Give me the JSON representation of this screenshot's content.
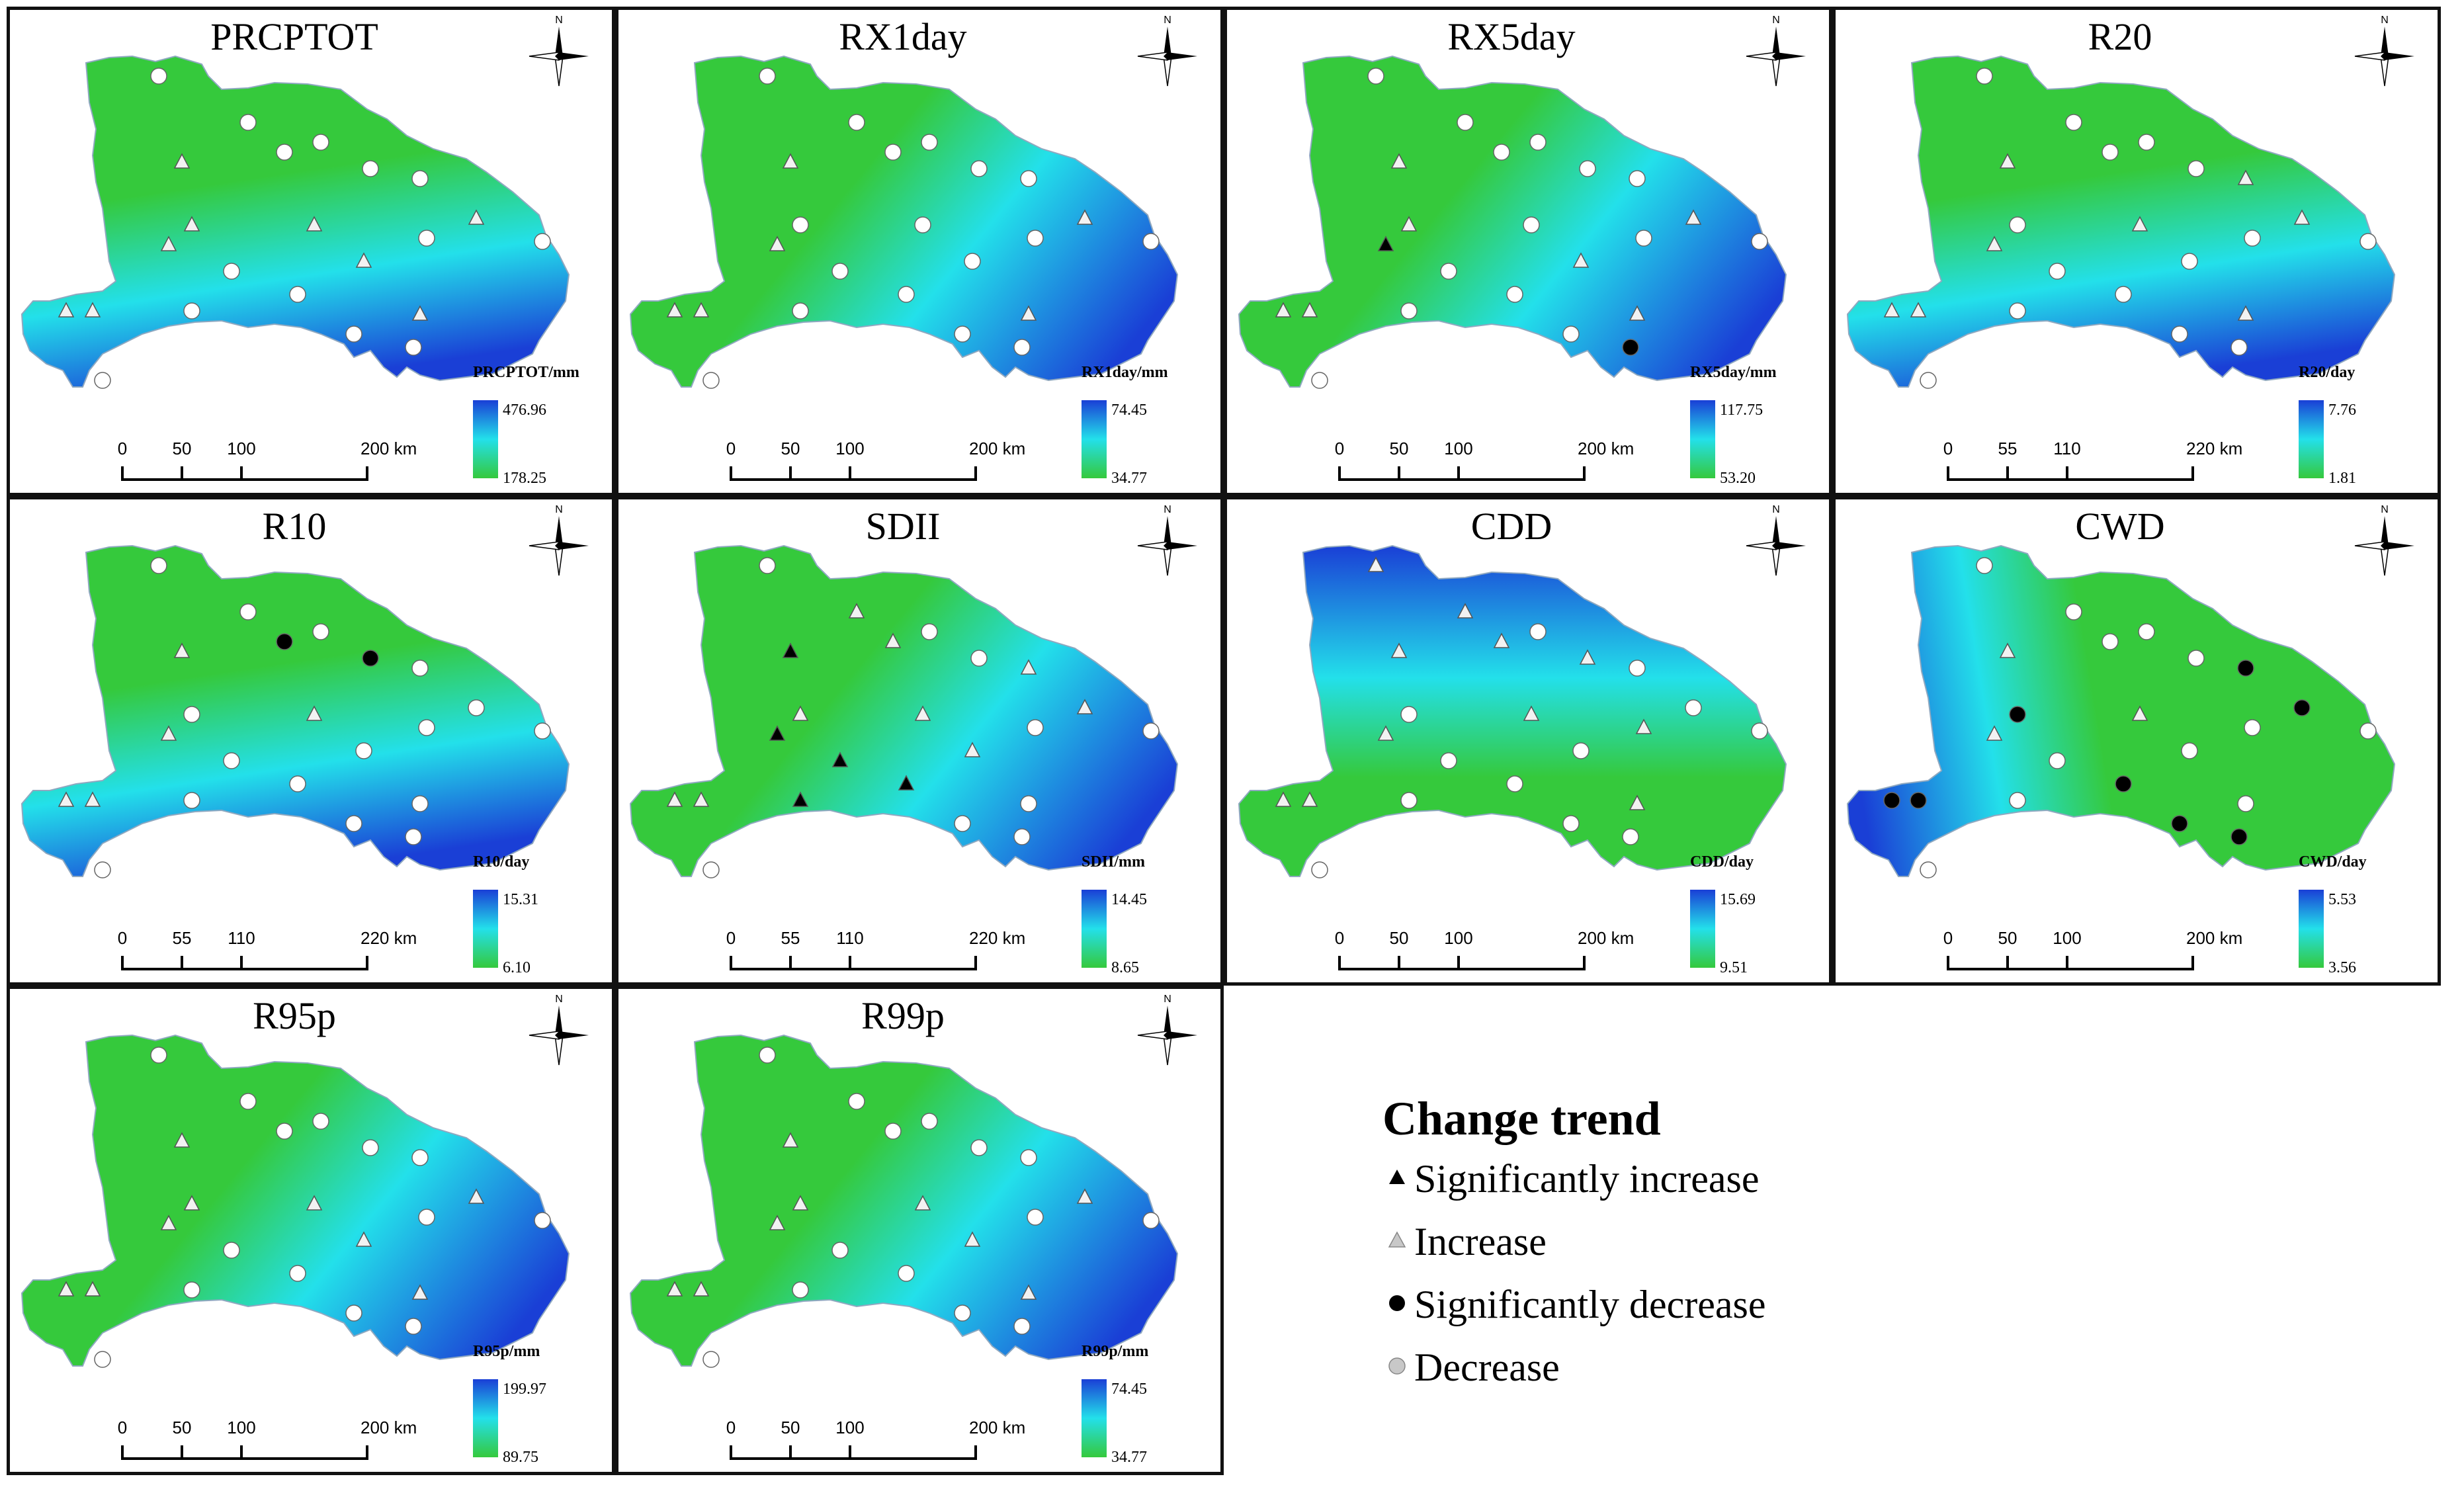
{
  "panels": [
    {
      "title": "PRCPTOT",
      "unit": "PRCPTOT/mm",
      "max": "476.96",
      "min": "178.25",
      "scale": [
        "0",
        "50",
        "100",
        "200 km"
      ],
      "ramp": "south"
    },
    {
      "title": "RX1day",
      "unit": "RX1day/mm",
      "max": "74.45",
      "min": "34.77",
      "scale": [
        "0",
        "50",
        "100",
        "200 km"
      ],
      "ramp": "east"
    },
    {
      "title": "RX5day",
      "unit": "RX5day/mm",
      "max": "117.75",
      "min": "53.20",
      "scale": [
        "0",
        "50",
        "100",
        "200 km"
      ],
      "ramp": "east"
    },
    {
      "title": "R20",
      "unit": "R20/day",
      "max": "7.76",
      "min": "1.81",
      "scale": [
        "0",
        "55",
        "110",
        "220 km"
      ],
      "ramp": "south"
    },
    {
      "title": "R10",
      "unit": "R10/day",
      "max": "15.31",
      "min": "6.10",
      "scale": [
        "0",
        "55",
        "110",
        "220 km"
      ],
      "ramp": "south"
    },
    {
      "title": "SDII",
      "unit": "SDII/mm",
      "max": "14.45",
      "min": "8.65",
      "scale": [
        "0",
        "55",
        "110",
        "220 km"
      ],
      "ramp": "east"
    },
    {
      "title": "CDD",
      "unit": "CDD/day",
      "max": "15.69",
      "min": "9.51",
      "scale": [
        "0",
        "50",
        "100",
        "200 km"
      ],
      "ramp": "north"
    },
    {
      "title": "CWD",
      "unit": "CWD/day",
      "max": "5.53",
      "min": "3.56",
      "scale": [
        "0",
        "50",
        "100",
        "200 km"
      ],
      "ramp": "west"
    },
    {
      "title": "R95p",
      "unit": "R95p/mm",
      "max": "199.97",
      "min": "89.75",
      "scale": [
        "0",
        "50",
        "100",
        "200 km"
      ],
      "ramp": "east"
    },
    {
      "title": "R99p",
      "unit": "R99p/mm",
      "max": "74.45",
      "min": "34.77",
      "scale": [
        "0",
        "50",
        "100",
        "200 km"
      ],
      "ramp": "east"
    }
  ],
  "legend": {
    "title": "Change trend",
    "items": [
      {
        "label": "Significantly increase",
        "symbol": "triangle",
        "color": "#000000"
      },
      {
        "label": "Increase",
        "symbol": "triangle",
        "color": "#c8c8c8"
      },
      {
        "label": "Significantly decrease",
        "symbol": "circle",
        "color": "#000000"
      },
      {
        "label": "Decrease",
        "symbol": "circle",
        "color": "#c8c8c8"
      }
    ]
  },
  "colors": {
    "high": "#1a3fd6",
    "mid": "#23e0ea",
    "low": "#35c93c"
  },
  "north_label": "N",
  "stations": [
    [
      {
        "s": "D"
      },
      {
        "s": "D"
      },
      {
        "s": "I"
      },
      {
        "s": "D"
      },
      {
        "s": "D"
      },
      {
        "s": "D"
      },
      {
        "s": "D"
      },
      {
        "s": "I"
      },
      {
        "s": "I"
      },
      {
        "s": "D"
      },
      {
        "s": "I"
      },
      {
        "s": "D"
      },
      {
        "s": "I"
      },
      {
        "s": "I"
      },
      {
        "s": "D"
      },
      {
        "s": "D"
      },
      {
        "s": "D"
      },
      {
        "s": "I"
      },
      {
        "s": "D"
      },
      {
        "s": "I"
      },
      {
        "s": "I"
      },
      {
        "s": "D"
      },
      {
        "s": "D"
      }
    ],
    [
      {
        "s": "D"
      },
      {
        "s": "D"
      },
      {
        "s": "I"
      },
      {
        "s": "D"
      },
      {
        "s": "D"
      },
      {
        "s": "D"
      },
      {
        "s": "D"
      },
      {
        "s": "D"
      },
      {
        "s": "I"
      },
      {
        "s": "D"
      },
      {
        "s": "D"
      },
      {
        "s": "D"
      },
      {
        "s": "I"
      },
      {
        "s": "D"
      },
      {
        "s": "D"
      },
      {
        "s": "D"
      },
      {
        "s": "D"
      },
      {
        "s": "I"
      },
      {
        "s": "D"
      },
      {
        "s": "I"
      },
      {
        "s": "I"
      },
      {
        "s": "D"
      },
      {
        "s": "D"
      }
    ],
    [
      {
        "s": "D"
      },
      {
        "s": "D"
      },
      {
        "s": "I"
      },
      {
        "s": "D"
      },
      {
        "s": "D"
      },
      {
        "s": "D"
      },
      {
        "s": "D"
      },
      {
        "s": "D"
      },
      {
        "s": "I"
      },
      {
        "s": "D"
      },
      {
        "s": "I"
      },
      {
        "s": "D"
      },
      {
        "s": "SI"
      },
      {
        "s": "I"
      },
      {
        "s": "D"
      },
      {
        "s": "D"
      },
      {
        "s": "D"
      },
      {
        "s": "I"
      },
      {
        "s": "D"
      },
      {
        "s": "I"
      },
      {
        "s": "I"
      },
      {
        "s": "SD"
      },
      {
        "s": "D"
      }
    ],
    [
      {
        "s": "D"
      },
      {
        "s": "D"
      },
      {
        "s": "I"
      },
      {
        "s": "D"
      },
      {
        "s": "D"
      },
      {
        "s": "D"
      },
      {
        "s": "I"
      },
      {
        "s": "I"
      },
      {
        "s": "I"
      },
      {
        "s": "D"
      },
      {
        "s": "D"
      },
      {
        "s": "D"
      },
      {
        "s": "I"
      },
      {
        "s": "D"
      },
      {
        "s": "D"
      },
      {
        "s": "D"
      },
      {
        "s": "D"
      },
      {
        "s": "I"
      },
      {
        "s": "D"
      },
      {
        "s": "I"
      },
      {
        "s": "I"
      },
      {
        "s": "D"
      },
      {
        "s": "D"
      }
    ],
    [
      {
        "s": "D"
      },
      {
        "s": "D"
      },
      {
        "s": "I"
      },
      {
        "s": "SD"
      },
      {
        "s": "D"
      },
      {
        "s": "SD"
      },
      {
        "s": "D"
      },
      {
        "s": "I"
      },
      {
        "s": "D"
      },
      {
        "s": "D"
      },
      {
        "s": "D"
      },
      {
        "s": "D"
      },
      {
        "s": "I"
      },
      {
        "s": "D"
      },
      {
        "s": "D"
      },
      {
        "s": "D"
      },
      {
        "s": "D"
      },
      {
        "s": "D"
      },
      {
        "s": "D"
      },
      {
        "s": "I"
      },
      {
        "s": "I"
      },
      {
        "s": "D"
      },
      {
        "s": "D"
      }
    ],
    [
      {
        "s": "D"
      },
      {
        "s": "I"
      },
      {
        "s": "SI"
      },
      {
        "s": "I"
      },
      {
        "s": "D"
      },
      {
        "s": "D"
      },
      {
        "s": "I"
      },
      {
        "s": "I"
      },
      {
        "s": "I"
      },
      {
        "s": "D"
      },
      {
        "s": "I"
      },
      {
        "s": "D"
      },
      {
        "s": "SI"
      },
      {
        "s": "I"
      },
      {
        "s": "SI"
      },
      {
        "s": "SI"
      },
      {
        "s": "SI"
      },
      {
        "s": "D"
      },
      {
        "s": "D"
      },
      {
        "s": "I"
      },
      {
        "s": "I"
      },
      {
        "s": "D"
      },
      {
        "s": "D"
      }
    ],
    [
      {
        "s": "I"
      },
      {
        "s": "I"
      },
      {
        "s": "I"
      },
      {
        "s": "I"
      },
      {
        "s": "D"
      },
      {
        "s": "I"
      },
      {
        "s": "D"
      },
      {
        "s": "I"
      },
      {
        "s": "D"
      },
      {
        "s": "D"
      },
      {
        "s": "D"
      },
      {
        "s": "I"
      },
      {
        "s": "I"
      },
      {
        "s": "D"
      },
      {
        "s": "D"
      },
      {
        "s": "D"
      },
      {
        "s": "D"
      },
      {
        "s": "I"
      },
      {
        "s": "D"
      },
      {
        "s": "I"
      },
      {
        "s": "I"
      },
      {
        "s": "D"
      },
      {
        "s": "D"
      }
    ],
    [
      {
        "s": "D"
      },
      {
        "s": "D"
      },
      {
        "s": "I"
      },
      {
        "s": "D"
      },
      {
        "s": "D"
      },
      {
        "s": "D"
      },
      {
        "s": "SD"
      },
      {
        "s": "I"
      },
      {
        "s": "SD"
      },
      {
        "s": "D"
      },
      {
        "s": "SD"
      },
      {
        "s": "D"
      },
      {
        "s": "I"
      },
      {
        "s": "D"
      },
      {
        "s": "SD"
      },
      {
        "s": "D"
      },
      {
        "s": "D"
      },
      {
        "s": "D"
      },
      {
        "s": "SD"
      },
      {
        "s": "SD"
      },
      {
        "s": "SD"
      },
      {
        "s": "SD"
      },
      {
        "s": "D"
      }
    ],
    [
      {
        "s": "D"
      },
      {
        "s": "D"
      },
      {
        "s": "I"
      },
      {
        "s": "D"
      },
      {
        "s": "D"
      },
      {
        "s": "D"
      },
      {
        "s": "D"
      },
      {
        "s": "I"
      },
      {
        "s": "I"
      },
      {
        "s": "D"
      },
      {
        "s": "I"
      },
      {
        "s": "D"
      },
      {
        "s": "I"
      },
      {
        "s": "I"
      },
      {
        "s": "D"
      },
      {
        "s": "D"
      },
      {
        "s": "D"
      },
      {
        "s": "I"
      },
      {
        "s": "D"
      },
      {
        "s": "I"
      },
      {
        "s": "I"
      },
      {
        "s": "D"
      },
      {
        "s": "D"
      }
    ],
    [
      {
        "s": "D"
      },
      {
        "s": "D"
      },
      {
        "s": "I"
      },
      {
        "s": "D"
      },
      {
        "s": "D"
      },
      {
        "s": "D"
      },
      {
        "s": "D"
      },
      {
        "s": "I"
      },
      {
        "s": "I"
      },
      {
        "s": "D"
      },
      {
        "s": "I"
      },
      {
        "s": "D"
      },
      {
        "s": "I"
      },
      {
        "s": "I"
      },
      {
        "s": "D"
      },
      {
        "s": "D"
      },
      {
        "s": "D"
      },
      {
        "s": "I"
      },
      {
        "s": "D"
      },
      {
        "s": "I"
      },
      {
        "s": "I"
      },
      {
        "s": "D"
      },
      {
        "s": "D"
      }
    ]
  ]
}
